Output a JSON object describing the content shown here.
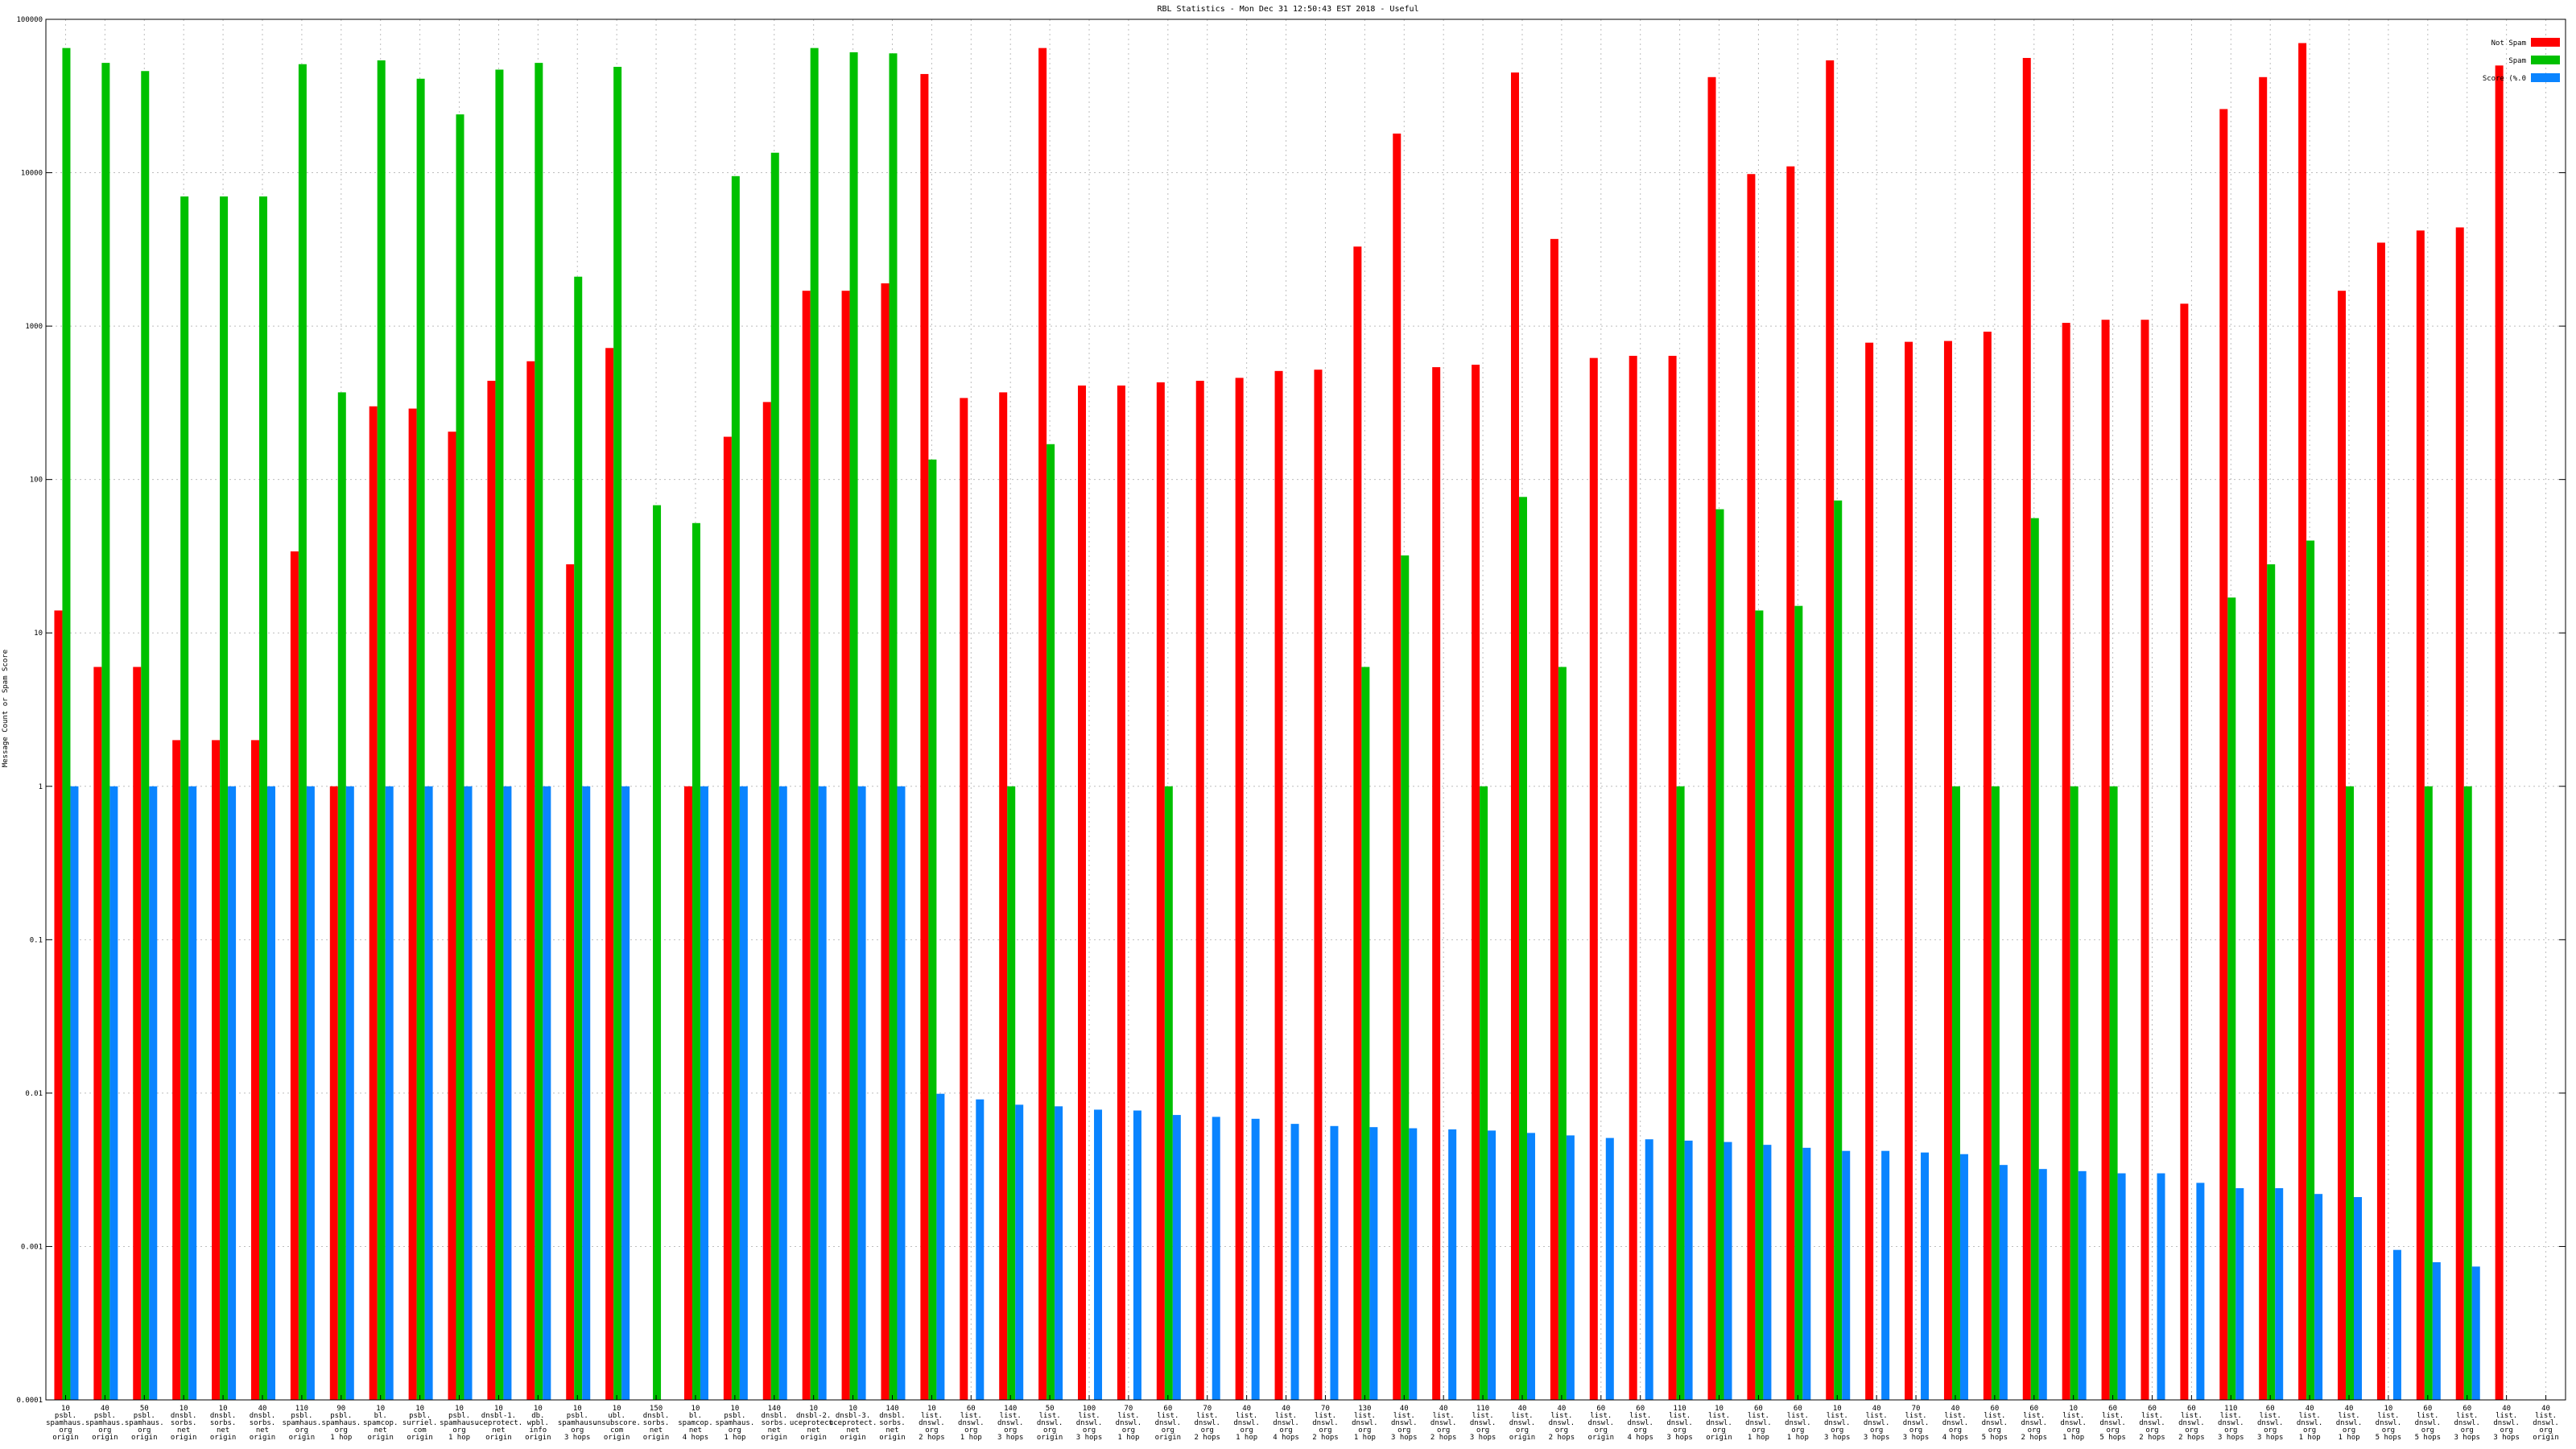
{
  "chart_data": {
    "type": "bar",
    "title": "RBL Statistics - Mon Dec 31 12:50:43 EST 2018 - Useful",
    "ylabel": "Message Count or Spam Score",
    "yscale": "log",
    "ylim": [
      0.0001,
      100000
    ],
    "yticks": [
      {
        "value": 0.0001,
        "label": "0.0001"
      },
      {
        "value": 0.001,
        "label": "0.001"
      },
      {
        "value": 0.01,
        "label": "0.01"
      },
      {
        "value": 0.1,
        "label": "0.1"
      },
      {
        "value": 1,
        "label": "1"
      },
      {
        "value": 10,
        "label": "10"
      },
      {
        "value": 100,
        "label": "100"
      },
      {
        "value": 1000,
        "label": "1000"
      },
      {
        "value": 10000,
        "label": "10000"
      },
      {
        "value": 100000,
        "label": "100000"
      }
    ],
    "grid": true,
    "legend_position": "top-right",
    "categories": [
      [
        "10",
        "psbl.",
        "spamhaus.",
        "org",
        "origin"
      ],
      [
        "40",
        "psbl.",
        "spamhaus.",
        "org",
        "origin"
      ],
      [
        "50",
        "psbl.",
        "spamhaus.",
        "org",
        "origin"
      ],
      [
        "10",
        "dnsbl.",
        "sorbs.",
        "net",
        "origin"
      ],
      [
        "10",
        "dnsbl.",
        "sorbs.",
        "net",
        "origin"
      ],
      [
        "40",
        "dnsbl.",
        "sorbs.",
        "net",
        "origin"
      ],
      [
        "110",
        "psbl.",
        "spamhaus.",
        "org",
        "origin"
      ],
      [
        "90",
        "psbl.",
        "spamhaus.",
        "org",
        "1 hop"
      ],
      [
        "10",
        "bl.",
        "spamcop.",
        "net",
        "origin"
      ],
      [
        "10",
        "psbl.",
        "surriel.",
        "com",
        "origin"
      ],
      [
        "10",
        "psbl.",
        "spamhaus.",
        "org",
        "1 hop"
      ],
      [
        "10",
        "dnsbl-1.",
        "uceprotect.",
        "net",
        "origin"
      ],
      [
        "10",
        "db.",
        "wpbl.",
        "info",
        "origin"
      ],
      [
        "10",
        "psbl.",
        "spamhaus.",
        "org",
        "3 hops"
      ],
      [
        "10",
        "ubl.",
        "unsubscore.",
        "com",
        "origin"
      ],
      [
        "150",
        "dnsbl.",
        "sorbs.",
        "net",
        "origin"
      ],
      [
        "10",
        "bl.",
        "spamcop.",
        "net",
        "4 hops"
      ],
      [
        "10",
        "psbl.",
        "spamhaus.",
        "org",
        "1 hop"
      ],
      [
        "140",
        "dnsbl.",
        "sorbs.",
        "net",
        "origin"
      ],
      [
        "10",
        "dnsbl-2.",
        "uceprotect.",
        "net",
        "origin"
      ],
      [
        "10",
        "dnsbl-3.",
        "uceprotect.",
        "net",
        "origin"
      ],
      [
        "140",
        "dnsbl.",
        "sorbs.",
        "net",
        "origin"
      ],
      [
        "10",
        "list.",
        "dnswl.",
        "org",
        "2 hops"
      ],
      [
        "60",
        "list.",
        "dnswl.",
        "org",
        "1 hop"
      ],
      [
        "140",
        "list.",
        "dnswl.",
        "org",
        "3 hops"
      ],
      [
        "50",
        "list.",
        "dnswl.",
        "org",
        "origin"
      ],
      [
        "100",
        "list.",
        "dnswl.",
        "org",
        "3 hops"
      ],
      [
        "70",
        "list.",
        "dnswl.",
        "org",
        "1 hop"
      ],
      [
        "60",
        "list.",
        "dnswl.",
        "org",
        "origin"
      ],
      [
        "70",
        "list.",
        "dnswl.",
        "org",
        "2 hops"
      ],
      [
        "40",
        "list.",
        "dnswl.",
        "org",
        "1 hop"
      ],
      [
        "40",
        "list.",
        "dnswl.",
        "org",
        "4 hops"
      ],
      [
        "70",
        "list.",
        "dnswl.",
        "org",
        "2 hops"
      ],
      [
        "130",
        "list.",
        "dnswl.",
        "org",
        "1 hop"
      ],
      [
        "40",
        "list.",
        "dnswl.",
        "org",
        "3 hops"
      ],
      [
        "40",
        "list.",
        "dnswl.",
        "org",
        "2 hops"
      ],
      [
        "110",
        "list.",
        "dnswl.",
        "org",
        "3 hops"
      ],
      [
        "40",
        "list.",
        "dnswl.",
        "org",
        "origin"
      ],
      [
        "40",
        "list.",
        "dnswl.",
        "org",
        "2 hops"
      ],
      [
        "60",
        "list.",
        "dnswl.",
        "org",
        "origin"
      ],
      [
        "60",
        "list.",
        "dnswl.",
        "org",
        "4 hops"
      ],
      [
        "110",
        "list.",
        "dnswl.",
        "org",
        "3 hops"
      ],
      [
        "10",
        "list.",
        "dnswl.",
        "org",
        "origin"
      ],
      [
        "60",
        "list.",
        "dnswl.",
        "org",
        "1 hop"
      ],
      [
        "60",
        "list.",
        "dnswl.",
        "org",
        "1 hop"
      ],
      [
        "10",
        "list.",
        "dnswl.",
        "org",
        "3 hops"
      ],
      [
        "40",
        "list.",
        "dnswl.",
        "org",
        "3 hops"
      ],
      [
        "70",
        "list.",
        "dnswl.",
        "org",
        "3 hops"
      ],
      [
        "40",
        "list.",
        "dnswl.",
        "org",
        "4 hops"
      ],
      [
        "60",
        "list.",
        "dnswl.",
        "org",
        "5 hops"
      ],
      [
        "60",
        "list.",
        "dnswl.",
        "org",
        "2 hops"
      ],
      [
        "10",
        "list.",
        "dnswl.",
        "org",
        "1 hop"
      ],
      [
        "60",
        "list.",
        "dnswl.",
        "org",
        "5 hops"
      ],
      [
        "60",
        "list.",
        "dnswl.",
        "org",
        "2 hops"
      ],
      [
        "60",
        "list.",
        "dnswl.",
        "org",
        "2 hops"
      ],
      [
        "110",
        "list.",
        "dnswl.",
        "org",
        "3 hops"
      ],
      [
        "60",
        "list.",
        "dnswl.",
        "org",
        "3 hops"
      ],
      [
        "40",
        "list.",
        "dnswl.",
        "org",
        "1 hop"
      ],
      [
        "40",
        "list.",
        "dnswl.",
        "org",
        "1 hop"
      ],
      [
        "10",
        "list.",
        "dnswl.",
        "org",
        "5 hops"
      ],
      [
        "60",
        "list.",
        "dnswl.",
        "org",
        "5 hops"
      ],
      [
        "60",
        "list.",
        "dnswl.",
        "org",
        "3 hops"
      ],
      [
        "40",
        "list.",
        "dnswl.",
        "org",
        "3 hops"
      ],
      [
        "40",
        "list.",
        "dnswl.",
        "org",
        "origin"
      ]
    ],
    "series": [
      {
        "name": "Not Spam",
        "color": "#ff0000",
        "values": [
          14,
          6,
          6,
          2,
          2,
          2,
          34,
          1,
          300,
          290,
          205,
          440,
          590,
          28,
          720,
          null,
          1,
          190,
          320,
          1700,
          1700,
          1900,
          44000,
          340,
          370,
          65000,
          410,
          410,
          430,
          440,
          460,
          510,
          520,
          3300,
          18000,
          540,
          560,
          45000,
          3700,
          620,
          640,
          640,
          42000,
          9800,
          11000,
          54000,
          780,
          790,
          800,
          920,
          56000,
          1050,
          1100,
          1100,
          1400,
          26000,
          42000,
          70000,
          1700,
          3500,
          4200,
          4400,
          50000,
          null
        ]
      },
      {
        "name": "Spam",
        "color": "#00c000",
        "values": [
          65000,
          52000,
          46000,
          7000,
          7000,
          7000,
          51000,
          370,
          54000,
          41000,
          24000,
          47000,
          52000,
          2100,
          49000,
          68,
          52,
          9500,
          13500,
          65000,
          61000,
          60000,
          135,
          null,
          1,
          170,
          null,
          null,
          1,
          null,
          null,
          null,
          null,
          6,
          32,
          null,
          1,
          77,
          6,
          null,
          null,
          1,
          64,
          14,
          15,
          73,
          null,
          null,
          1,
          1,
          56,
          1,
          1,
          null,
          null,
          17,
          28,
          40,
          1,
          null,
          1,
          1,
          null,
          null
        ]
      },
      {
        "name": "Score (%.0",
        "color": "#0a84ff",
        "values": [
          1,
          1,
          1,
          1,
          1,
          1,
          1,
          1,
          1,
          1,
          1,
          1,
          1,
          1,
          1,
          null,
          1,
          1,
          1,
          1,
          1,
          1,
          0.0099,
          0.0091,
          0.0084,
          0.0082,
          0.0078,
          0.0077,
          0.0072,
          0.007,
          0.0068,
          0.0063,
          0.0061,
          0.006,
          0.0059,
          0.0058,
          0.0057,
          0.0055,
          0.0053,
          0.0051,
          0.005,
          0.0049,
          0.0048,
          0.0046,
          0.0044,
          0.0042,
          0.0042,
          0.0041,
          0.004,
          0.0034,
          0.0032,
          0.0031,
          0.003,
          0.003,
          0.0026,
          0.0024,
          0.0024,
          0.0022,
          0.0021,
          0.00095,
          0.00079,
          0.00074,
          null,
          null
        ]
      }
    ]
  }
}
